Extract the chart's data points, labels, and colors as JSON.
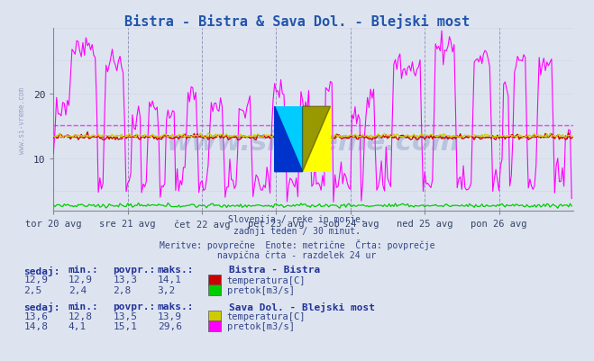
{
  "title": "Bistra - Bistra & Sava Dol. - Blejski most",
  "title_color": "#2255aa",
  "bg_color": "#dde4f0",
  "plot_bg_color": "#dde4f0",
  "xlabel_ticks": [
    "tor 20 avg",
    "sre 21 avg",
    "čet 22 avg",
    "pet 23 avg",
    "sob 24 avg",
    "ned 25 avg",
    "pon 26 avg"
  ],
  "yticks": [
    10,
    20
  ],
  "ylim": [
    2,
    30
  ],
  "xlim": [
    0,
    336
  ],
  "watermark": "www.si-vreme.com",
  "grid_color": "#c8c8d8",
  "vline_color": "#9999bb",
  "n_points": 336,
  "bistra_temp_avg": 13.3,
  "sava_temp_avg": 13.5,
  "sava_flow_avg": 15.1,
  "bistra_flow_avg": 2.8,
  "subtitle_line1": "Slovenija / reke in morje.",
  "subtitle_line2": "zadnji teden / 30 minut.",
  "subtitle_line3": "Meritve: povprečne  Enote: metrične  Črta: povprečje",
  "subtitle_line4": "navpična črta - razdelek 24 ur",
  "stat_header": [
    "sedaj:",
    "min.:",
    "povpr.:",
    "maks.:"
  ],
  "stats_bistra_temp": [
    "12,9",
    "12,9",
    "13,3",
    "14,1"
  ],
  "stats_bistra_flow": [
    "2,5",
    "2,4",
    "2,8",
    "3,2"
  ],
  "stats_sava_temp": [
    "13,6",
    "12,8",
    "13,5",
    "13,9"
  ],
  "stats_sava_flow": [
    "14,8",
    "4,1",
    "15,1",
    "29,6"
  ],
  "legend1_title": "Bistra - Bistra",
  "legend2_title": "Sava Dol. - Blejski most",
  "color_bistra_temp": "#cc0000",
  "color_bistra_flow": "#00cc00",
  "color_sava_temp": "#cccc00",
  "color_sava_flow": "#ff00ff",
  "color_text": "#334488",
  "color_header": "#223399"
}
